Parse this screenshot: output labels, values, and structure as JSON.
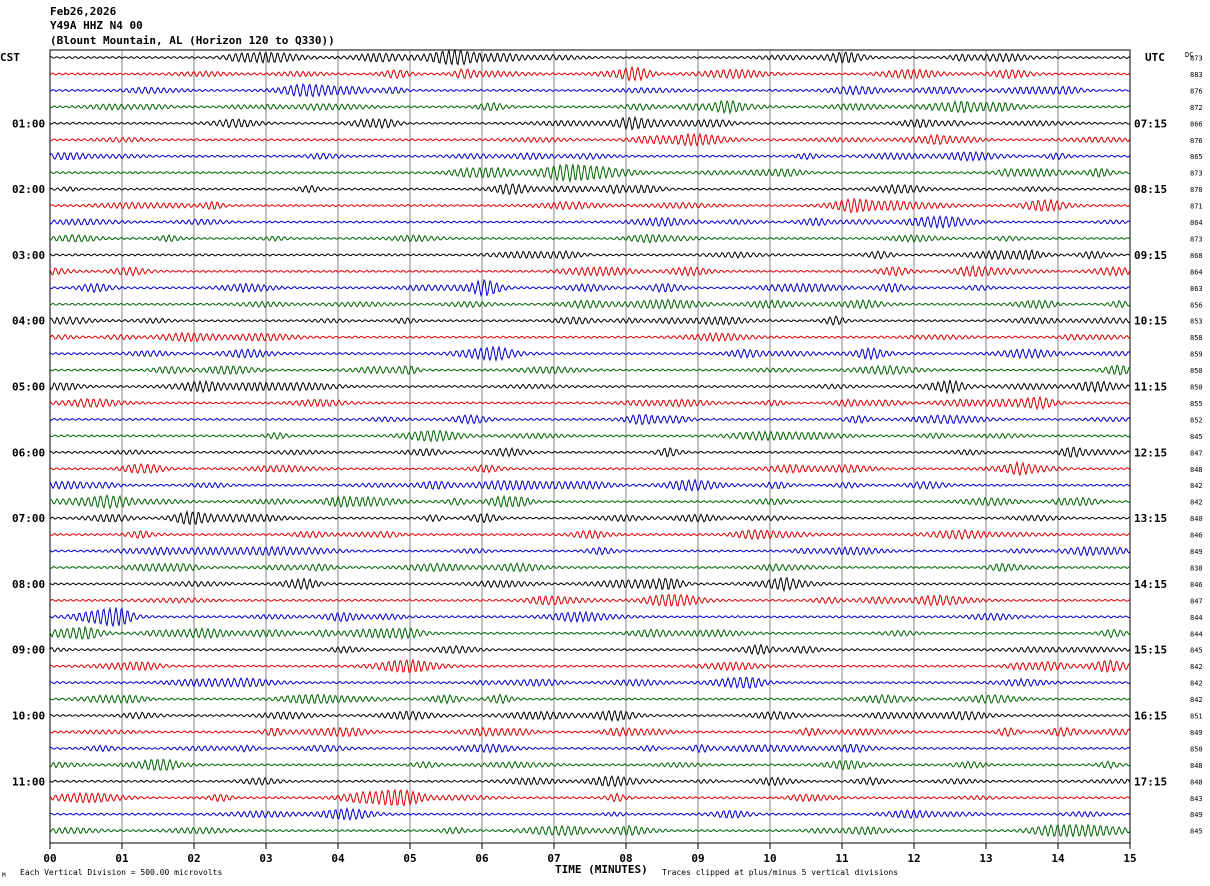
{
  "header": {
    "date": "Feb26,2026",
    "station": "Y49A HHZ N4 00",
    "location": "(Blount Mountain, AL (Horizon 120 to Q330))"
  },
  "chart_data": {
    "type": "line",
    "title": "",
    "xlabel": "TIME (MINUTES)",
    "xlim": [
      0,
      15
    ],
    "x_ticks": [
      "00",
      "01",
      "02",
      "03",
      "04",
      "05",
      "06",
      "07",
      "08",
      "09",
      "10",
      "11",
      "12",
      "13",
      "14",
      "15"
    ],
    "left_axis_label": "CST",
    "right_axis_label": "UTC",
    "dc_label": "DC",
    "cst_labels": [
      "01:00",
      "02:00",
      "03:00",
      "04:00",
      "05:00",
      "06:00",
      "07:00",
      "08:00",
      "09:00",
      "10:00",
      "11:00"
    ],
    "utc_labels": [
      "07:15",
      "08:15",
      "09:15",
      "10:15",
      "11:15",
      "12:15",
      "13:15",
      "14:15",
      "15:15",
      "16:15",
      "17:15"
    ],
    "trace_colors": [
      "#000000",
      "#dd0000",
      "#0000cc",
      "#006600"
    ],
    "dc_offsets": [
      873,
      883,
      876,
      872,
      866,
      876,
      865,
      873,
      870,
      871,
      864,
      873,
      868,
      864,
      863,
      856,
      853,
      858,
      859,
      850,
      850,
      855,
      852,
      845,
      847,
      848,
      842,
      842,
      840,
      846,
      849,
      838,
      846,
      847,
      844,
      844,
      845,
      842,
      842,
      842,
      851,
      849,
      850,
      848,
      848,
      843,
      849,
      845
    ],
    "rows": 48,
    "footer_left": "Each Vertical Division =  500.00 microvolts",
    "footer_right": "Traces clipped at plus/minus 5 vertical divisions",
    "grid": true
  }
}
